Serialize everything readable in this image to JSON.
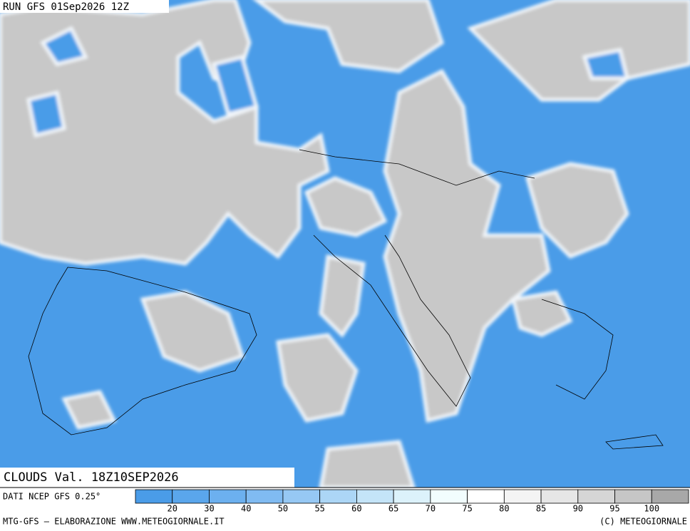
{
  "header": {
    "run": "RUN GFS 01Sep2026 12Z"
  },
  "map": {
    "title": "CLOUDS Val. 18Z10SEP2026"
  },
  "legend": {
    "source": "DATI NCEP GFS 0.25°",
    "colors": [
      "#4a9ce8",
      "#5aa6ec",
      "#6cb0ef",
      "#80bbf2",
      "#96c8f4",
      "#acd6f6",
      "#c4e4f8",
      "#dcf2fb",
      "#f2fdfe",
      "#ffffff",
      "#f4f4f4",
      "#e6e6e6",
      "#d6d6d6",
      "#c6c6c6",
      "#a8a8a8"
    ],
    "ticks": [
      20,
      30,
      40,
      50,
      55,
      60,
      65,
      70,
      75,
      80,
      85,
      90,
      95,
      100
    ]
  },
  "footer": {
    "left": "MTG-GFS — ELABORAZIONE WWW.METEOGIORNALE.IT",
    "right": "(C) METEOGIORNALE"
  }
}
